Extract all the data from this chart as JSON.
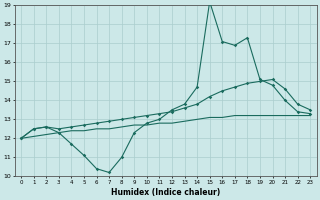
{
  "title": "",
  "xlabel": "Humidex (Indice chaleur)",
  "x": [
    0,
    1,
    2,
    3,
    4,
    5,
    6,
    7,
    8,
    9,
    10,
    11,
    12,
    13,
    14,
    15,
    16,
    17,
    18,
    19,
    20,
    21,
    22,
    23
  ],
  "y_main": [
    12,
    12.5,
    12.6,
    12.3,
    11.7,
    11.1,
    10.4,
    10.2,
    11.0,
    12.3,
    12.8,
    13.0,
    13.5,
    13.8,
    14.7,
    19.2,
    17.1,
    16.9,
    17.3,
    15.1,
    14.8,
    14.0,
    13.4,
    13.3
  ],
  "y_upper": [
    12,
    12.5,
    12.6,
    12.5,
    12.6,
    12.7,
    12.8,
    12.9,
    13.0,
    13.1,
    13.2,
    13.3,
    13.4,
    13.6,
    13.8,
    14.2,
    14.5,
    14.7,
    14.9,
    15.0,
    15.1,
    14.6,
    13.8,
    13.5
  ],
  "y_lower": [
    12,
    12.1,
    12.2,
    12.3,
    12.4,
    12.4,
    12.5,
    12.5,
    12.6,
    12.7,
    12.7,
    12.8,
    12.8,
    12.9,
    13.0,
    13.1,
    13.1,
    13.2,
    13.2,
    13.2,
    13.2,
    13.2,
    13.2,
    13.2
  ],
  "ylim": [
    10,
    19
  ],
  "xlim": [
    -0.5,
    23.5
  ],
  "yticks": [
    10,
    11,
    12,
    13,
    14,
    15,
    16,
    17,
    18,
    19
  ],
  "xticks": [
    0,
    1,
    2,
    3,
    4,
    5,
    6,
    7,
    8,
    9,
    10,
    11,
    12,
    13,
    14,
    15,
    16,
    17,
    18,
    19,
    20,
    21,
    22,
    23
  ],
  "line_color": "#1a6b5e",
  "bg_color": "#cce8e8",
  "grid_color": "#aacece"
}
